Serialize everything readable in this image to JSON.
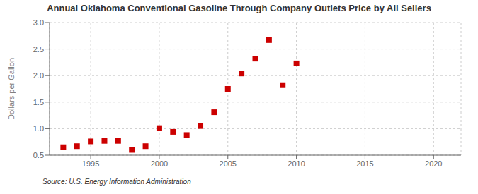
{
  "chart_data": {
    "type": "scatter",
    "title": "Annual Oklahoma Conventional Gasoline Through Company Outlets Price by All Sellers",
    "ylabel": "Dollars per Gallon",
    "annotations": [
      "Source: U.S. Energy Information Administration"
    ],
    "x": [
      1993,
      1994,
      1995,
      1996,
      1997,
      1998,
      1999,
      2000,
      2001,
      2002,
      2003,
      2004,
      2005,
      2006,
      2007,
      2008,
      2009,
      2010
    ],
    "values": [
      0.65,
      0.67,
      0.76,
      0.77,
      0.77,
      0.6,
      0.67,
      1.01,
      0.94,
      0.88,
      1.05,
      1.31,
      1.75,
      2.04,
      2.32,
      2.67,
      1.82,
      2.23
    ],
    "color": "#cc0000",
    "marker": "square",
    "xlim": [
      1992,
      2022
    ],
    "ylim": [
      0.5,
      3.0
    ],
    "xticks": [
      1995,
      2000,
      2005,
      2010,
      2015,
      2020
    ],
    "yticks": [
      0.5,
      {
        "value": 1,
        "label": "1.0"
      },
      1.5,
      {
        "value": 2,
        "label": "2.0"
      },
      2.5,
      {
        "value": 3,
        "label": "3.0"
      }
    ],
    "grid": true
  }
}
